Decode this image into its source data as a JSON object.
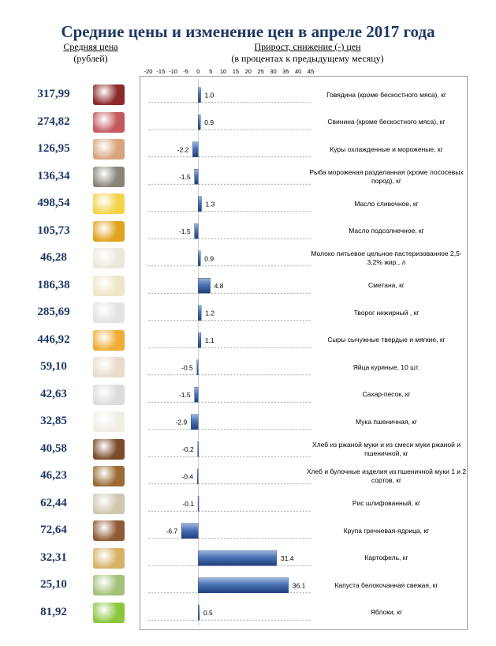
{
  "title": "Средние цены и изменение цен в апреле 2017 года",
  "price_header": {
    "line1": "Средняя цена",
    "line2": "(рублей)"
  },
  "growth_header": {
    "line1": "Прирост, снижение (-) цен",
    "line2": "(в процентах к предыдущему месяцу)"
  },
  "chart_data": {
    "type": "bar",
    "orientation": "horizontal",
    "xlim": [
      -20,
      45
    ],
    "x_ticks": [
      "-20",
      "-15",
      "-10",
      "-5",
      "0",
      "5",
      "10",
      "15",
      "20",
      "25",
      "30",
      "35",
      "40",
      "45"
    ],
    "items": [
      {
        "name": "Говядина (кроме бескостного мяса), кг",
        "price": "317,99",
        "change": 1.0,
        "label": "1.0",
        "color": "#8c2a2a"
      },
      {
        "name": "Свинина (кроме бескостного мяса), кг",
        "price": "274,82",
        "change": 0.9,
        "label": "0.9",
        "color": "#c4585e"
      },
      {
        "name": "Куры охлажденные и мороженые, кг",
        "price": "126,95",
        "change": -2.2,
        "label": "-2.2",
        "color": "#d9a47c"
      },
      {
        "name": "Рыба мороженая разделанная (кроме лососевых пород), кг",
        "price": "136,34",
        "change": -1.5,
        "label": "-1.5",
        "color": "#8a8578"
      },
      {
        "name": "Масло сливочное, кг",
        "price": "498,54",
        "change": 1.3,
        "label": "1.3",
        "color": "#f3d34a"
      },
      {
        "name": "Масло подсолнечное, кг",
        "price": "105,73",
        "change": -1.5,
        "label": "-1.5",
        "color": "#e1a21e"
      },
      {
        "name": "Молоко питьевое цельное пастеризованное 2,5-3,2% жир., л",
        "price": "46,28",
        "change": 0.9,
        "label": "0.9",
        "color": "#ede8dc"
      },
      {
        "name": "Сметана, кг",
        "price": "186,38",
        "change": 4.8,
        "label": "4.8",
        "color": "#efe5c8"
      },
      {
        "name": "Творог нежирный , кг",
        "price": "285,69",
        "change": 1.2,
        "label": "1.2",
        "color": "#e3e3e3"
      },
      {
        "name": "Сыры сычужные твердые и мягкие, кг",
        "price": "446,92",
        "change": 1.1,
        "label": "1.1",
        "color": "#f1ac34"
      },
      {
        "name": "Яйца куриные,  10 шт.",
        "price": "59,10",
        "change": -0.5,
        "label": "-0.5",
        "color": "#e9dccb"
      },
      {
        "name": "Сахар-песок, кг",
        "price": "42,63",
        "change": -1.5,
        "label": "-1.5",
        "color": "#dcdcdc"
      },
      {
        "name": "Мука пшеничная, кг",
        "price": "32,85",
        "change": -2.9,
        "label": "-2.9",
        "color": "#f1eee6"
      },
      {
        "name": "Хлеб  из  ржаной муки и из смеси муки ржаной и пшеничной, кг",
        "price": "40,58",
        "change": -0.2,
        "label": "-0.2",
        "color": "#7a4a2a"
      },
      {
        "name": "Хлеб и булочные  изделия из пшеничной муки 1 и 2 сортов, кг",
        "price": "46,23",
        "change": -0.4,
        "label": "-0.4",
        "color": "#9a6a32"
      },
      {
        "name": "Рис шлифованный, кг",
        "price": "62,44",
        "change": -0.1,
        "label": "-0.1",
        "color": "#cfc7ae"
      },
      {
        "name": "Крупа гречневая-ядрица, кг",
        "price": "72,64",
        "change": -6.7,
        "label": "-6.7",
        "color": "#8f5a34"
      },
      {
        "name": "Картофель, кг",
        "price": "32,31",
        "change": 31.4,
        "label": "31.4",
        "color": "#d8b265"
      },
      {
        "name": "Капуста белокочанная свежая, кг",
        "price": "25,10",
        "change": 36.1,
        "label": "36.1",
        "color": "#a3c179"
      },
      {
        "name": "Яблоки, кг",
        "price": "81,92",
        "change": 0.5,
        "label": "0.5",
        "color": "#8cc63f"
      }
    ]
  }
}
